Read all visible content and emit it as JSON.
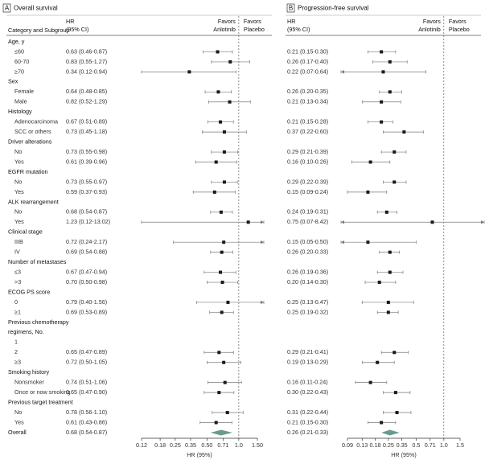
{
  "chart_data": [
    {
      "type": "forest",
      "panel": "A",
      "title": "Overall survival",
      "category_header": "Category and Subgroup",
      "hr_header": [
        "HR",
        "(95% CI)"
      ],
      "favors_left": [
        "Favors",
        "Anlotinib"
      ],
      "favors_right": [
        "Favors",
        "Placebo"
      ],
      "xlabel": "HR (95%)",
      "xscale": "log",
      "xlim": [
        0.12,
        1.5
      ],
      "xticks": [
        0.12,
        0.18,
        0.25,
        0.35,
        {
          "value": 0.5,
          "label": "0.50"
        },
        0.71,
        {
          "value": 1,
          "label": "1.0"
        },
        {
          "value": 1.5,
          "label": "1.50"
        }
      ],
      "reference_line": 1,
      "marker_color": "#1a1a1a",
      "ci_color": "#7a7a7a",
      "overall_color": "#6a9a8f",
      "groups": [
        {
          "name": "Age, y",
          "categories": [
            "≤60",
            "60-70",
            "≥70"
          ],
          "values": [
            0.63,
            0.83,
            0.34
          ],
          "lower": [
            0.46,
            0.55,
            0.12
          ],
          "upper": [
            0.87,
            1.27,
            0.94
          ],
          "value_labels": [
            "0.63 (0.46-0.87)",
            "0.83 (0.55-1.27)",
            "0.34 (0.12-0.94)"
          ]
        },
        {
          "name": "Sex",
          "categories": [
            "Female",
            "Male"
          ],
          "values": [
            0.64,
            0.82
          ],
          "lower": [
            0.48,
            0.52
          ],
          "upper": [
            0.85,
            1.29
          ],
          "value_labels": [
            "0.64 (0.48-0.85)",
            "0.82 (0.52-1.29)"
          ]
        },
        {
          "name": "Histology",
          "categories": [
            "Adenocarcinoma",
            "SCC or others"
          ],
          "values": [
            0.67,
            0.73
          ],
          "lower": [
            0.51,
            0.45
          ],
          "upper": [
            0.89,
            1.18
          ],
          "value_labels": [
            "0.67 (0.51-0.89)",
            "0.73 (0.45-1.18)"
          ]
        },
        {
          "name": "Driver alterations",
          "categories": [
            "No",
            "Yes"
          ],
          "values": [
            0.73,
            0.61
          ],
          "lower": [
            0.55,
            0.39
          ],
          "upper": [
            0.98,
            0.96
          ],
          "value_labels": [
            "0.73 (0.55-0.98)",
            "0.61 (0.39-0.96)"
          ]
        },
        {
          "name": "EGFR mutation",
          "categories": [
            "No",
            "Yes"
          ],
          "values": [
            0.73,
            0.59
          ],
          "lower": [
            0.55,
            0.37
          ],
          "upper": [
            0.97,
            0.93
          ],
          "value_labels": [
            "0.73 (0.55-0.97)",
            "0.59 (0.37-0.93)"
          ]
        },
        {
          "name": "ALK rearrangement",
          "categories": [
            "No",
            "Yes"
          ],
          "values": [
            0.68,
            1.23
          ],
          "lower": [
            0.54,
            0.12
          ],
          "upper": [
            0.87,
            13.02
          ],
          "value_labels": [
            "0.68 (0.54-0.87)",
            "1.23 (0.12-13.02)"
          ]
        },
        {
          "name": "Clinical stage",
          "categories": [
            "IIIB",
            "IV"
          ],
          "values": [
            0.72,
            0.69
          ],
          "lower": [
            0.24,
            0.54
          ],
          "upper": [
            2.17,
            0.88
          ],
          "value_labels": [
            "0.72 (0.24-2.17)",
            "0.69 (0.54-0.88)"
          ]
        },
        {
          "name": "Number of metastases",
          "categories": [
            "≤3",
            ">3"
          ],
          "values": [
            0.67,
            0.7
          ],
          "lower": [
            0.47,
            0.5
          ],
          "upper": [
            0.94,
            0.98
          ],
          "value_labels": [
            "0.67 (0.47-0.94)",
            "0.70 (0.50-0.98)"
          ]
        },
        {
          "name": "ECOG PS score",
          "categories": [
            "0",
            "≥1"
          ],
          "values": [
            0.79,
            0.69
          ],
          "lower": [
            0.4,
            0.53
          ],
          "upper": [
            1.56,
            0.89
          ],
          "value_labels": [
            "0.79 (0.40-1.56)",
            "0.69 (0.53-0.89)"
          ]
        },
        {
          "name": [
            "Previous chemotherapy",
            "regimens, No."
          ],
          "categories": [
            "1",
            "2",
            "≥3"
          ],
          "values": [
            null,
            0.65,
            0.72
          ],
          "lower": [
            null,
            0.47,
            0.5
          ],
          "upper": [
            null,
            0.89,
            1.05
          ],
          "value_labels": [
            null,
            "0.65 (0.47-0.89)",
            "0.72 (0.50-1.05)"
          ]
        },
        {
          "name": "Smoking history",
          "categories": [
            "Nonsmoker",
            "Once or now smoking"
          ],
          "values": [
            0.74,
            0.65
          ],
          "lower": [
            0.51,
            0.47
          ],
          "upper": [
            1.06,
            0.9
          ],
          "value_labels": [
            "0.74 (0.51-1.06)",
            "0.65 (0.47-0.90)"
          ]
        },
        {
          "name": "Previous target treatment",
          "categories": [
            "No",
            "Yes"
          ],
          "values": [
            0.78,
            0.61
          ],
          "lower": [
            0.56,
            0.43
          ],
          "upper": [
            1.1,
            0.86
          ],
          "value_labels": [
            "0.78 (0.56-1.10)",
            "0.61 (0.43-0.86)"
          ]
        }
      ],
      "overall": {
        "name": "Overall",
        "value": 0.68,
        "lower": 0.54,
        "upper": 0.87,
        "value_label": "0.68 (0.54-0.87)"
      }
    },
    {
      "type": "forest",
      "panel": "B",
      "title": "Progression-free survival",
      "hr_header": [
        "HR",
        "(95% CI)"
      ],
      "favors_left": [
        "Favors",
        "Anlotinib"
      ],
      "favors_right": [
        "Favors",
        "Placebo"
      ],
      "xlabel": "HR (95%)",
      "xscale": "log",
      "xlim": [
        0.09,
        1.5
      ],
      "xticks": [
        0.09,
        0.13,
        0.18,
        0.25,
        0.35,
        0.5,
        0.71,
        {
          "value": 1,
          "label": "1.0"
        },
        1.5
      ],
      "reference_line": 1,
      "marker_color": "#1a1a1a",
      "ci_color": "#7a7a7a",
      "overall_color": "#6a9a8f",
      "groups": [
        {
          "values": [
            0.21,
            0.26,
            0.22
          ],
          "lower": [
            0.15,
            0.17,
            0.07
          ],
          "upper": [
            0.3,
            0.4,
            0.64
          ],
          "value_labels": [
            "0.21 (0.15-0.30)",
            "0.26 (0.17-0.40)",
            "0.22 (0.07-0.64)"
          ]
        },
        {
          "values": [
            0.26,
            0.21
          ],
          "lower": [
            0.2,
            0.13
          ],
          "upper": [
            0.35,
            0.34
          ],
          "value_labels": [
            "0.26 (0.20-0.35)",
            "0.21 (0.13-0.34)"
          ]
        },
        {
          "values": [
            0.21,
            0.37
          ],
          "lower": [
            0.15,
            0.22
          ],
          "upper": [
            0.28,
            0.6
          ],
          "value_labels": [
            "0.21 (0.15-0.28)",
            "0.37 (0.22-0.60)"
          ]
        },
        {
          "values": [
            0.29,
            0.16
          ],
          "lower": [
            0.21,
            0.1
          ],
          "upper": [
            0.39,
            0.26
          ],
          "value_labels": [
            "0.29 (0.21-0.39)",
            "0.16 (0.10-0.26)"
          ]
        },
        {
          "values": [
            0.29,
            0.15
          ],
          "lower": [
            0.22,
            0.09
          ],
          "upper": [
            0.39,
            0.24
          ],
          "value_labels": [
            "0.29 (0.22-0.39)",
            "0.15 (0.09-0.24)"
          ]
        },
        {
          "values": [
            0.24,
            0.75
          ],
          "lower": [
            0.19,
            0.07
          ],
          "upper": [
            0.31,
            8.42
          ],
          "value_labels": [
            "0.24 (0.19-0.31)",
            "0.75 (0.07-8.42)"
          ]
        },
        {
          "values": [
            0.15,
            0.26
          ],
          "lower": [
            0.05,
            0.2
          ],
          "upper": [
            0.5,
            0.33
          ],
          "value_labels": [
            "0.15 (0.05-0.50)",
            "0.26 (0.20-0.33)"
          ]
        },
        {
          "values": [
            0.26,
            0.2
          ],
          "lower": [
            0.19,
            0.14
          ],
          "upper": [
            0.36,
            0.3
          ],
          "value_labels": [
            "0.26 (0.19-0.36)",
            "0.20 (0.14-0.30)"
          ]
        },
        {
          "values": [
            0.25,
            0.25
          ],
          "lower": [
            0.13,
            0.19
          ],
          "upper": [
            0.47,
            0.32
          ],
          "value_labels": [
            "0.25 (0.13-0.47)",
            "0.25 (0.19-0.32)"
          ]
        },
        {
          "values": [
            null,
            0.29,
            0.19
          ],
          "lower": [
            null,
            0.21,
            0.13
          ],
          "upper": [
            null,
            0.41,
            0.29
          ],
          "value_labels": [
            null,
            "0.29 (0.21-0.41)",
            "0.19 (0.13-0.29)"
          ]
        },
        {
          "values": [
            0.16,
            0.3
          ],
          "lower": [
            0.11,
            0.22
          ],
          "upper": [
            0.24,
            0.43
          ],
          "value_labels": [
            "0.16 (0.11-0.24)",
            "0.30 (0.22-0.43)"
          ]
        },
        {
          "values": [
            0.31,
            0.21
          ],
          "lower": [
            0.22,
            0.15
          ],
          "upper": [
            0.44,
            0.3
          ],
          "value_labels": [
            "0.31 (0.22-0.44)",
            "0.21 (0.15-0.30)"
          ]
        }
      ],
      "overall": {
        "value": 0.26,
        "lower": 0.21,
        "upper": 0.33,
        "value_label": "0.26 (0.21-0.33)"
      }
    }
  ]
}
